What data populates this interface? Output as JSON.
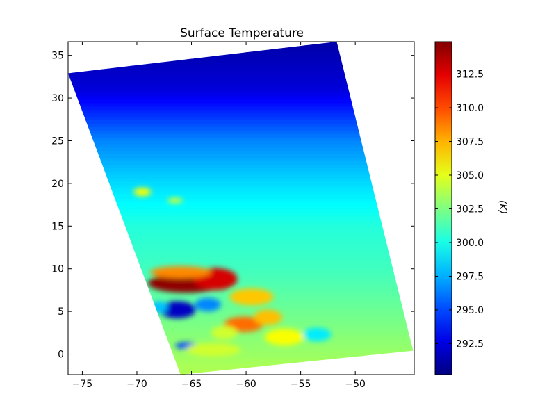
{
  "chart_data": {
    "type": "heatmap",
    "title": "Surface Temperature",
    "xlabel": "",
    "ylabel": "",
    "colorbar_label": "(K)",
    "colormap": "jet",
    "xlim": [
      -76.3,
      -44.6
    ],
    "ylim": [
      -2.4,
      36.6
    ],
    "xticks": [
      -75,
      -70,
      -65,
      -60,
      -55,
      -50
    ],
    "xtick_labels": [
      "−75",
      "−70",
      "−65",
      "−60",
      "−55",
      "−50"
    ],
    "yticks": [
      0,
      5,
      10,
      15,
      20,
      25,
      30,
      35
    ],
    "ytick_labels": [
      "0",
      "5",
      "10",
      "15",
      "20",
      "25",
      "30",
      "35"
    ],
    "colorbar_range": [
      290.2,
      314.9
    ],
    "colorbar_ticks": [
      292.5,
      295.0,
      297.5,
      300.0,
      302.5,
      305.0,
      307.5,
      310.0,
      312.5
    ],
    "colorbar_tick_labels": [
      "292.5",
      "295.0",
      "297.5",
      "300.0",
      "302.5",
      "305.0",
      "307.5",
      "310.0",
      "312.5"
    ],
    "swath_corners": [
      [
        -76.3,
        32.9
      ],
      [
        -51.7,
        36.6
      ],
      [
        -44.7,
        0.4
      ],
      [
        -66.0,
        -2.4
      ]
    ],
    "grid": false,
    "background_gradient": [
      {
        "lat": 36,
        "temp": 291.3
      },
      {
        "lat": 31,
        "temp": 292.4
      },
      {
        "lat": 25,
        "temp": 296.5
      },
      {
        "lat": 20,
        "temp": 298.6
      },
      {
        "lat": 15,
        "temp": 300.3
      },
      {
        "lat": 10,
        "temp": 301.0
      },
      {
        "lat": 5,
        "temp": 302.1
      },
      {
        "lat": 0,
        "temp": 303.2
      },
      {
        "lat": -2.4,
        "temp": 303.8
      }
    ],
    "anomalies": [
      {
        "lon": -65.5,
        "lat": 8.3,
        "rx": 3.5,
        "ry": 1.1,
        "temp": 314.5
      },
      {
        "lon": -62.8,
        "lat": 8.8,
        "rx": 2.0,
        "ry": 1.3,
        "temp": 312.8
      },
      {
        "lon": -66.0,
        "lat": 9.6,
        "rx": 2.8,
        "ry": 0.7,
        "temp": 308.5
      },
      {
        "lon": -59.5,
        "lat": 6.7,
        "rx": 2.0,
        "ry": 1.0,
        "temp": 307.0
      },
      {
        "lon": -60.2,
        "lat": 3.5,
        "rx": 1.8,
        "ry": 0.9,
        "temp": 309.2
      },
      {
        "lon": -58.0,
        "lat": 4.3,
        "rx": 1.3,
        "ry": 0.9,
        "temp": 307.2
      },
      {
        "lon": -66.3,
        "lat": 5.2,
        "rx": 1.7,
        "ry": 1.0,
        "temp": 291.8
      },
      {
        "lon": -63.5,
        "lat": 5.8,
        "rx": 1.2,
        "ry": 0.8,
        "temp": 296.5
      },
      {
        "lon": -65.5,
        "lat": 1.0,
        "rx": 1.0,
        "ry": 0.4,
        "temp": 295.0
      },
      {
        "lon": -62.0,
        "lat": 2.5,
        "rx": 1.2,
        "ry": 0.8,
        "temp": 304.5
      },
      {
        "lon": -56.5,
        "lat": 2.0,
        "rx": 1.8,
        "ry": 1.0,
        "temp": 305.5
      },
      {
        "lon": -63.0,
        "lat": 0.5,
        "rx": 2.5,
        "ry": 0.8,
        "temp": 304.5
      },
      {
        "lon": -53.5,
        "lat": 2.3,
        "rx": 1.3,
        "ry": 0.8,
        "temp": 299.0
      },
      {
        "lon": -69.5,
        "lat": 19.0,
        "rx": 0.8,
        "ry": 0.5,
        "temp": 305.5
      },
      {
        "lon": -66.5,
        "lat": 18.0,
        "rx": 0.7,
        "ry": 0.3,
        "temp": 305.0
      },
      {
        "lon": -68.0,
        "lat": 5.5,
        "rx": 0.8,
        "ry": 0.7,
        "temp": 298.0
      }
    ]
  }
}
